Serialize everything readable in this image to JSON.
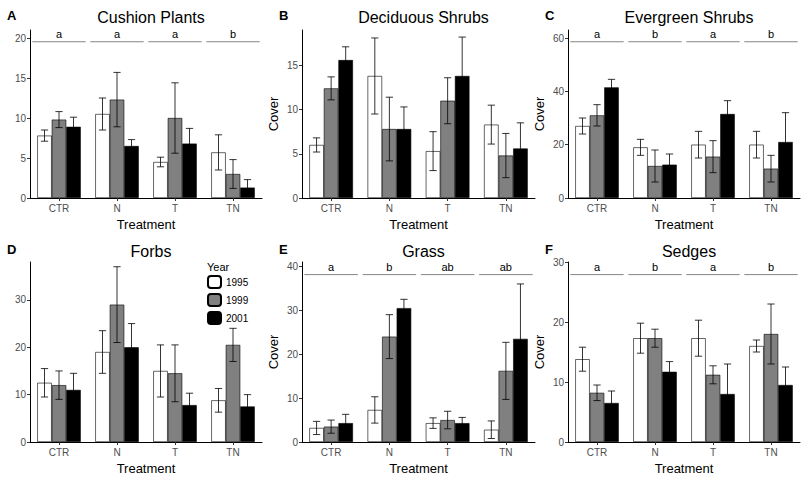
{
  "chart_data": [
    {
      "type": "bar",
      "panel": "A",
      "title": "Cushion Plants",
      "x_label": "Treatment",
      "categories": [
        "CTR",
        "N",
        "T",
        "TN"
      ],
      "series": [
        {
          "name": "1995",
          "color": "#ffffff",
          "values": [
            7.8,
            10.5,
            4.5,
            5.7
          ],
          "errors": [
            0.7,
            2.0,
            0.6,
            2.2
          ]
        },
        {
          "name": "1999",
          "color": "#808080",
          "values": [
            9.8,
            12.3,
            10.0,
            3.0
          ],
          "errors": [
            1.0,
            3.4,
            4.4,
            1.8
          ]
        },
        {
          "name": "2001",
          "color": "#000000",
          "values": [
            8.9,
            6.5,
            6.8,
            1.3
          ],
          "errors": [
            1.2,
            0.8,
            1.9,
            1.0
          ]
        }
      ],
      "significance": [
        "a",
        "a",
        "a",
        "b"
      ],
      "ylim": [
        0,
        21
      ],
      "yticks": [
        0,
        5,
        10,
        15,
        20
      ],
      "grid": false
    },
    {
      "type": "bar",
      "panel": "B",
      "title": "Deciduous Shrubs",
      "x_label": "Treatment",
      "y_label": "Cover",
      "categories": [
        "CTR",
        "N",
        "T",
        "TN"
      ],
      "series": [
        {
          "name": "1995",
          "color": "#ffffff",
          "values": [
            6.0,
            13.8,
            5.3,
            8.3
          ],
          "errors": [
            0.8,
            4.3,
            2.2,
            2.2
          ]
        },
        {
          "name": "1999",
          "color": "#808080",
          "values": [
            12.4,
            7.8,
            11.0,
            4.8
          ],
          "errors": [
            1.3,
            3.6,
            2.6,
            2.5
          ]
        },
        {
          "name": "2001",
          "color": "#000000",
          "values": [
            15.6,
            7.8,
            13.8,
            5.6
          ],
          "errors": [
            1.5,
            2.5,
            4.4,
            2.9
          ]
        }
      ],
      "ylim": [
        0,
        19
      ],
      "yticks": [
        0,
        5,
        10,
        15
      ],
      "grid": false
    },
    {
      "type": "bar",
      "panel": "C",
      "title": "Evergreen Shrubs",
      "x_label": "Treatment",
      "y_label": "Cover",
      "categories": [
        "CTR",
        "N",
        "T",
        "TN"
      ],
      "series": [
        {
          "name": "1995",
          "color": "#ffffff",
          "values": [
            27.0,
            19.0,
            20.0,
            20.0
          ],
          "errors": [
            3.0,
            3.0,
            5.0,
            5.0
          ]
        },
        {
          "name": "1999",
          "color": "#808080",
          "values": [
            31.0,
            12.0,
            15.5,
            11.0
          ],
          "errors": [
            4.0,
            6.0,
            6.0,
            5.0
          ]
        },
        {
          "name": "2001",
          "color": "#000000",
          "values": [
            41.5,
            12.5,
            31.5,
            21.0
          ],
          "errors": [
            3.0,
            4.0,
            5.0,
            11.0
          ]
        }
      ],
      "significance": [
        "a",
        "b",
        "a",
        "b"
      ],
      "ylim": [
        0,
        63
      ],
      "yticks": [
        0,
        20,
        40,
        60
      ],
      "grid": false
    },
    {
      "type": "bar",
      "panel": "D",
      "title": "Forbs",
      "x_label": "Treatment",
      "legend": "top right",
      "legend_title": "Year",
      "categories": [
        "CTR",
        "N",
        "T",
        "TN"
      ],
      "series": [
        {
          "name": "1995",
          "color": "#ffffff",
          "values": [
            12.5,
            19.0,
            15.0,
            8.8
          ],
          "errors": [
            3.0,
            4.5,
            5.5,
            2.5
          ]
        },
        {
          "name": "1999",
          "color": "#808080",
          "values": [
            12.0,
            29.0,
            14.5,
            20.5
          ],
          "errors": [
            3.0,
            8.0,
            6.0,
            3.5
          ]
        },
        {
          "name": "2001",
          "color": "#000000",
          "values": [
            11.0,
            20.0,
            7.8,
            7.5
          ],
          "errors": [
            3.5,
            5.0,
            2.5,
            2.5
          ]
        }
      ],
      "ylim": [
        0,
        38
      ],
      "yticks": [
        0,
        10,
        20,
        30
      ],
      "grid": false
    },
    {
      "type": "bar",
      "panel": "E",
      "title": "Grass",
      "x_label": "Treatment",
      "y_label": "Cover",
      "categories": [
        "CTR",
        "N",
        "T",
        "TN"
      ],
      "series": [
        {
          "name": "1995",
          "color": "#ffffff",
          "values": [
            3.2,
            7.3,
            4.3,
            2.8
          ],
          "errors": [
            1.5,
            3.0,
            1.2,
            2.0
          ]
        },
        {
          "name": "1999",
          "color": "#808080",
          "values": [
            3.5,
            24.0,
            5.0,
            16.2
          ],
          "errors": [
            1.5,
            5.0,
            2.0,
            6.5
          ]
        },
        {
          "name": "2001",
          "color": "#000000",
          "values": [
            4.3,
            30.5,
            4.3,
            23.5
          ],
          "errors": [
            2.0,
            2.0,
            1.3,
            12.5
          ]
        }
      ],
      "significance": [
        "a",
        "b",
        "ab",
        "ab"
      ],
      "ylim": [
        0,
        41
      ],
      "yticks": [
        0,
        10,
        20,
        30,
        40
      ],
      "grid": false
    },
    {
      "type": "bar",
      "panel": "F",
      "title": "Sedges",
      "x_label": "Treatment",
      "y_label": "Cover",
      "categories": [
        "CTR",
        "N",
        "T",
        "TN"
      ],
      "series": [
        {
          "name": "1995",
          "color": "#ffffff",
          "values": [
            13.8,
            17.3,
            17.3,
            16.0
          ],
          "errors": [
            2.0,
            2.5,
            3.0,
            1.0
          ]
        },
        {
          "name": "1999",
          "color": "#808080",
          "values": [
            8.2,
            17.3,
            11.2,
            18.0
          ],
          "errors": [
            1.3,
            1.5,
            1.5,
            5.0
          ]
        },
        {
          "name": "2001",
          "color": "#000000",
          "values": [
            6.5,
            11.7,
            8.0,
            9.5
          ],
          "errors": [
            2.0,
            1.7,
            5.0,
            3.0
          ]
        }
      ],
      "significance": [
        "a",
        "b",
        "a",
        "b"
      ],
      "ylim": [
        0,
        30
      ],
      "yticks": [
        0,
        10,
        20,
        30
      ],
      "grid": false
    }
  ]
}
